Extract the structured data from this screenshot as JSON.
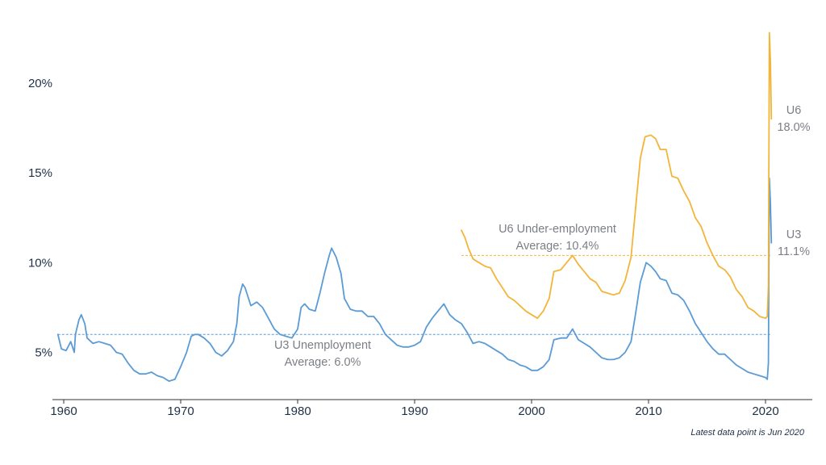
{
  "chart_data": {
    "type": "line",
    "title": "",
    "xlabel": "",
    "ylabel": "",
    "xlim": [
      1959.5,
      2023.5
    ],
    "ylim": [
      2,
      24.5
    ],
    "x_ticks": [
      1960,
      1970,
      1980,
      1990,
      2000,
      2010,
      2020
    ],
    "x_tick_labels": [
      "1960",
      "1970",
      "1980",
      "1990",
      "2000",
      "2010",
      "2020"
    ],
    "y_ticks": [
      5,
      10,
      15,
      20
    ],
    "y_tick_labels": [
      "5%",
      "10%",
      "15%",
      "20%"
    ],
    "grid": false,
    "colors": {
      "u3": "#5b9bd5",
      "u6": "#f2b53a",
      "axis": "#333333",
      "text": "#1f2f46",
      "annotation": "#7b7f85"
    },
    "series": [
      {
        "name": "U3 Unemployment",
        "color": "#5b9bd5",
        "points": [
          [
            1959.5,
            6.0
          ],
          [
            1959.8,
            5.2
          ],
          [
            1960.2,
            5.1
          ],
          [
            1960.6,
            5.6
          ],
          [
            1960.9,
            5.0
          ],
          [
            1961.0,
            6.0
          ],
          [
            1961.3,
            6.8
          ],
          [
            1961.5,
            7.1
          ],
          [
            1961.8,
            6.6
          ],
          [
            1962.0,
            5.8
          ],
          [
            1962.5,
            5.5
          ],
          [
            1963.0,
            5.6
          ],
          [
            1963.5,
            5.5
          ],
          [
            1964.0,
            5.4
          ],
          [
            1964.5,
            5.0
          ],
          [
            1965.0,
            4.9
          ],
          [
            1965.5,
            4.4
          ],
          [
            1966.0,
            4.0
          ],
          [
            1966.5,
            3.8
          ],
          [
            1967.0,
            3.8
          ],
          [
            1967.5,
            3.9
          ],
          [
            1968.0,
            3.7
          ],
          [
            1968.5,
            3.6
          ],
          [
            1969.0,
            3.4
          ],
          [
            1969.5,
            3.5
          ],
          [
            1970.0,
            4.2
          ],
          [
            1970.5,
            5.0
          ],
          [
            1970.9,
            5.9
          ],
          [
            1971.2,
            6.0
          ],
          [
            1971.5,
            6.0
          ],
          [
            1972.0,
            5.8
          ],
          [
            1972.5,
            5.5
          ],
          [
            1973.0,
            5.0
          ],
          [
            1973.5,
            4.8
          ],
          [
            1974.0,
            5.1
          ],
          [
            1974.5,
            5.6
          ],
          [
            1974.8,
            6.6
          ],
          [
            1975.0,
            8.1
          ],
          [
            1975.3,
            8.8
          ],
          [
            1975.5,
            8.6
          ],
          [
            1976.0,
            7.6
          ],
          [
            1976.5,
            7.8
          ],
          [
            1977.0,
            7.5
          ],
          [
            1977.5,
            6.9
          ],
          [
            1978.0,
            6.3
          ],
          [
            1978.5,
            6.0
          ],
          [
            1979.0,
            5.9
          ],
          [
            1979.5,
            5.8
          ],
          [
            1980.0,
            6.3
          ],
          [
            1980.3,
            7.5
          ],
          [
            1980.6,
            7.7
          ],
          [
            1981.0,
            7.4
          ],
          [
            1981.5,
            7.3
          ],
          [
            1981.9,
            8.3
          ],
          [
            1982.3,
            9.4
          ],
          [
            1982.7,
            10.4
          ],
          [
            1982.9,
            10.8
          ],
          [
            1983.3,
            10.3
          ],
          [
            1983.7,
            9.4
          ],
          [
            1984.0,
            8.0
          ],
          [
            1984.5,
            7.4
          ],
          [
            1985.0,
            7.3
          ],
          [
            1985.5,
            7.3
          ],
          [
            1986.0,
            7.0
          ],
          [
            1986.5,
            7.0
          ],
          [
            1987.0,
            6.6
          ],
          [
            1987.5,
            6.0
          ],
          [
            1988.0,
            5.7
          ],
          [
            1988.5,
            5.4
          ],
          [
            1989.0,
            5.3
          ],
          [
            1989.5,
            5.3
          ],
          [
            1990.0,
            5.4
          ],
          [
            1990.5,
            5.6
          ],
          [
            1991.0,
            6.4
          ],
          [
            1991.5,
            6.9
          ],
          [
            1992.0,
            7.3
          ],
          [
            1992.5,
            7.7
          ],
          [
            1993.0,
            7.1
          ],
          [
            1993.5,
            6.8
          ],
          [
            1994.0,
            6.6
          ],
          [
            1994.5,
            6.1
          ],
          [
            1995.0,
            5.5
          ],
          [
            1995.5,
            5.6
          ],
          [
            1996.0,
            5.5
          ],
          [
            1996.5,
            5.3
          ],
          [
            1997.0,
            5.1
          ],
          [
            1997.5,
            4.9
          ],
          [
            1998.0,
            4.6
          ],
          [
            1998.5,
            4.5
          ],
          [
            1999.0,
            4.3
          ],
          [
            1999.5,
            4.2
          ],
          [
            2000.0,
            4.0
          ],
          [
            2000.5,
            4.0
          ],
          [
            2001.0,
            4.2
          ],
          [
            2001.5,
            4.6
          ],
          [
            2001.9,
            5.7
          ],
          [
            2002.5,
            5.8
          ],
          [
            2003.0,
            5.8
          ],
          [
            2003.5,
            6.3
          ],
          [
            2004.0,
            5.7
          ],
          [
            2004.5,
            5.5
          ],
          [
            2005.0,
            5.3
          ],
          [
            2005.5,
            5.0
          ],
          [
            2006.0,
            4.7
          ],
          [
            2006.5,
            4.6
          ],
          [
            2007.0,
            4.6
          ],
          [
            2007.5,
            4.7
          ],
          [
            2008.0,
            5.0
          ],
          [
            2008.5,
            5.6
          ],
          [
            2008.9,
            7.2
          ],
          [
            2009.3,
            8.9
          ],
          [
            2009.8,
            10.0
          ],
          [
            2010.2,
            9.8
          ],
          [
            2010.6,
            9.5
          ],
          [
            2011.0,
            9.1
          ],
          [
            2011.5,
            9.0
          ],
          [
            2012.0,
            8.3
          ],
          [
            2012.5,
            8.2
          ],
          [
            2013.0,
            7.9
          ],
          [
            2013.5,
            7.3
          ],
          [
            2014.0,
            6.6
          ],
          [
            2014.5,
            6.1
          ],
          [
            2015.0,
            5.6
          ],
          [
            2015.5,
            5.2
          ],
          [
            2016.0,
            4.9
          ],
          [
            2016.5,
            4.9
          ],
          [
            2017.0,
            4.6
          ],
          [
            2017.5,
            4.3
          ],
          [
            2018.0,
            4.1
          ],
          [
            2018.5,
            3.9
          ],
          [
            2019.0,
            3.8
          ],
          [
            2019.5,
            3.7
          ],
          [
            2020.0,
            3.6
          ],
          [
            2020.15,
            3.5
          ],
          [
            2020.25,
            4.4
          ],
          [
            2020.33,
            14.7
          ],
          [
            2020.42,
            13.3
          ],
          [
            2020.5,
            11.1
          ]
        ]
      },
      {
        "name": "U6 Under-employment",
        "color": "#f2b53a",
        "points": [
          [
            1994.0,
            11.8
          ],
          [
            1994.3,
            11.4
          ],
          [
            1994.6,
            10.8
          ],
          [
            1995.0,
            10.2
          ],
          [
            1995.5,
            10.0
          ],
          [
            1996.0,
            9.8
          ],
          [
            1996.5,
            9.7
          ],
          [
            1997.0,
            9.1
          ],
          [
            1997.5,
            8.6
          ],
          [
            1998.0,
            8.1
          ],
          [
            1998.5,
            7.9
          ],
          [
            1999.0,
            7.6
          ],
          [
            1999.5,
            7.3
          ],
          [
            2000.0,
            7.1
          ],
          [
            2000.5,
            6.9
          ],
          [
            2001.0,
            7.3
          ],
          [
            2001.5,
            8.0
          ],
          [
            2001.9,
            9.5
          ],
          [
            2002.5,
            9.6
          ],
          [
            2003.0,
            10.0
          ],
          [
            2003.5,
            10.4
          ],
          [
            2004.0,
            9.9
          ],
          [
            2004.5,
            9.5
          ],
          [
            2005.0,
            9.1
          ],
          [
            2005.5,
            8.9
          ],
          [
            2006.0,
            8.4
          ],
          [
            2006.5,
            8.3
          ],
          [
            2007.0,
            8.2
          ],
          [
            2007.5,
            8.3
          ],
          [
            2008.0,
            9.0
          ],
          [
            2008.5,
            10.3
          ],
          [
            2008.9,
            13.1
          ],
          [
            2009.3,
            15.8
          ],
          [
            2009.7,
            17.0
          ],
          [
            2010.2,
            17.1
          ],
          [
            2010.6,
            16.9
          ],
          [
            2011.0,
            16.3
          ],
          [
            2011.5,
            16.3
          ],
          [
            2012.0,
            14.8
          ],
          [
            2012.5,
            14.7
          ],
          [
            2013.0,
            14.0
          ],
          [
            2013.5,
            13.4
          ],
          [
            2014.0,
            12.5
          ],
          [
            2014.5,
            12.0
          ],
          [
            2015.0,
            11.1
          ],
          [
            2015.5,
            10.4
          ],
          [
            2016.0,
            9.8
          ],
          [
            2016.5,
            9.6
          ],
          [
            2017.0,
            9.2
          ],
          [
            2017.5,
            8.5
          ],
          [
            2018.0,
            8.1
          ],
          [
            2018.5,
            7.5
          ],
          [
            2019.0,
            7.3
          ],
          [
            2019.5,
            7.0
          ],
          [
            2020.0,
            6.9
          ],
          [
            2020.15,
            7.0
          ],
          [
            2020.25,
            8.7
          ],
          [
            2020.33,
            22.8
          ],
          [
            2020.42,
            21.2
          ],
          [
            2020.5,
            18.0
          ]
        ]
      }
    ],
    "averages": [
      {
        "name": "U3 average",
        "value": 6.0,
        "color": "#5b9bd5",
        "from": 1959.5,
        "to": 2020.5
      },
      {
        "name": "U6 average",
        "value": 10.4,
        "color": "#f2b53a",
        "from": 1994.0,
        "to": 2020.5
      }
    ]
  },
  "annotations": {
    "u6_avg_line1": "U6 Under-employment",
    "u6_avg_line2": "Average: 10.4%",
    "u3_avg_line1": "U3 Unemployment",
    "u3_avg_line2": "Average: 6.0%",
    "u6_end_label": "U6",
    "u6_end_value": "18.0%",
    "u3_end_label": "U3",
    "u3_end_value": "11.1%"
  },
  "footnote": "Latest data point is Jun 2020"
}
